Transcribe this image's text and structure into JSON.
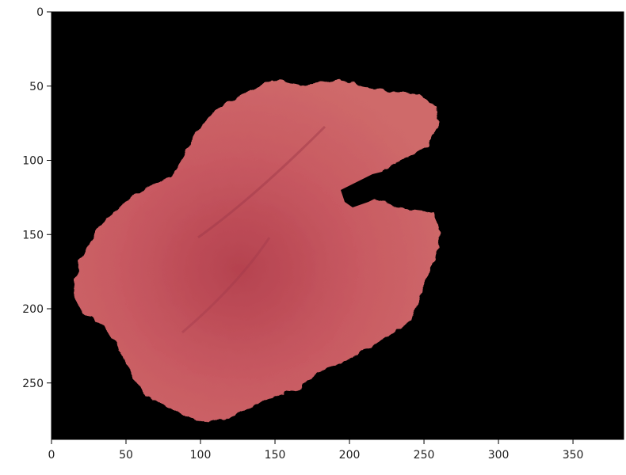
{
  "image": {
    "subject": "segmented-lesion",
    "background_color": "#000000",
    "region_color": "#c85a62",
    "region_dark_color": "#b5424f"
  },
  "axes": {
    "x_range": [
      0,
      384
    ],
    "y_range": [
      0,
      288
    ],
    "y_inverted": true,
    "x_ticks": [
      "0",
      "50",
      "100",
      "150",
      "200",
      "250",
      "300",
      "350"
    ],
    "y_ticks": [
      "0",
      "50",
      "100",
      "150",
      "200",
      "250"
    ]
  }
}
